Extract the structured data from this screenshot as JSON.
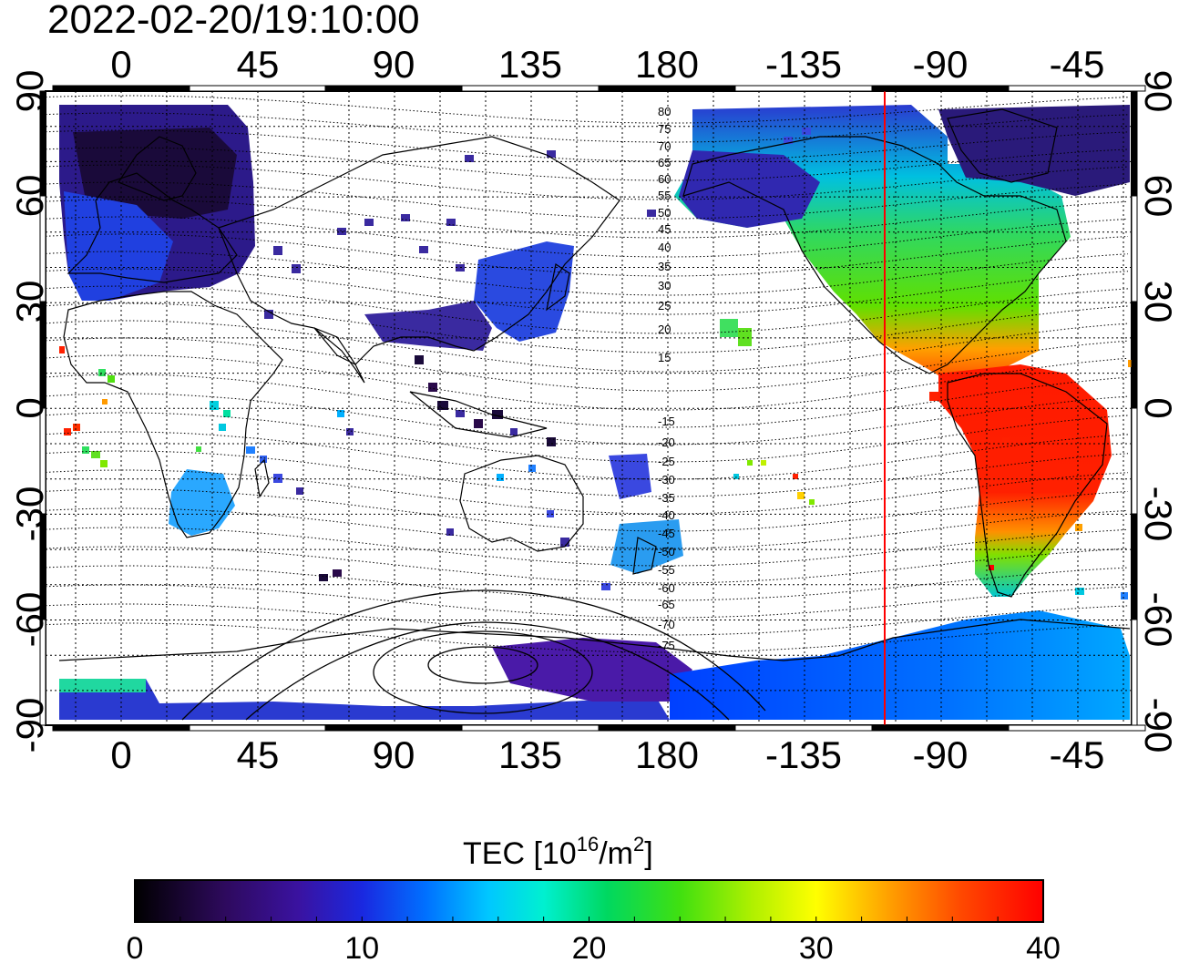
{
  "timestamp": "2022-02-20/19:10:00",
  "lon_ticks": [
    "0",
    "45",
    "90",
    "135",
    "180",
    "-135",
    "-90",
    "-45"
  ],
  "lat_ticks": [
    "90",
    "60",
    "30",
    "0",
    "-30",
    "-60",
    "-90"
  ],
  "contour_labels_north": [
    "80",
    "75",
    "70",
    "65",
    "60",
    "55",
    "50",
    "45",
    "40",
    "35",
    "30",
    "25",
    "20",
    "15"
  ],
  "contour_labels_south": [
    "-15",
    "-20",
    "-25",
    "-30",
    "-35",
    "-40",
    "-45",
    "-50",
    "-55",
    "-60",
    "-65",
    "-70",
    "-75"
  ],
  "colorbar": {
    "title_main": "TEC  [10",
    "title_sup1": "16",
    "title_mid": "/m",
    "title_sup2": "2",
    "title_end": "]",
    "tick_labels": [
      "0",
      "10",
      "20",
      "30",
      "40"
    ],
    "range": [
      0,
      40
    ],
    "colors": [
      "#000000",
      "#3a0a6e",
      "#2a1fb0",
      "#0050ff",
      "#00a0ff",
      "#00e8ff",
      "#00e08a",
      "#30e020",
      "#c0f000",
      "#ffff00",
      "#ff9a00",
      "#ff4000",
      "#ff0000"
    ]
  },
  "terminator_color": "#ff0000",
  "tec_regions": [
    {
      "name": "north-europe",
      "tec": 3
    },
    {
      "name": "north-america",
      "tec": 22
    },
    {
      "name": "south-america",
      "tec": 38
    },
    {
      "name": "antarctic-west",
      "tec": 11
    },
    {
      "name": "antarctic-east",
      "tec": 7
    }
  ]
}
